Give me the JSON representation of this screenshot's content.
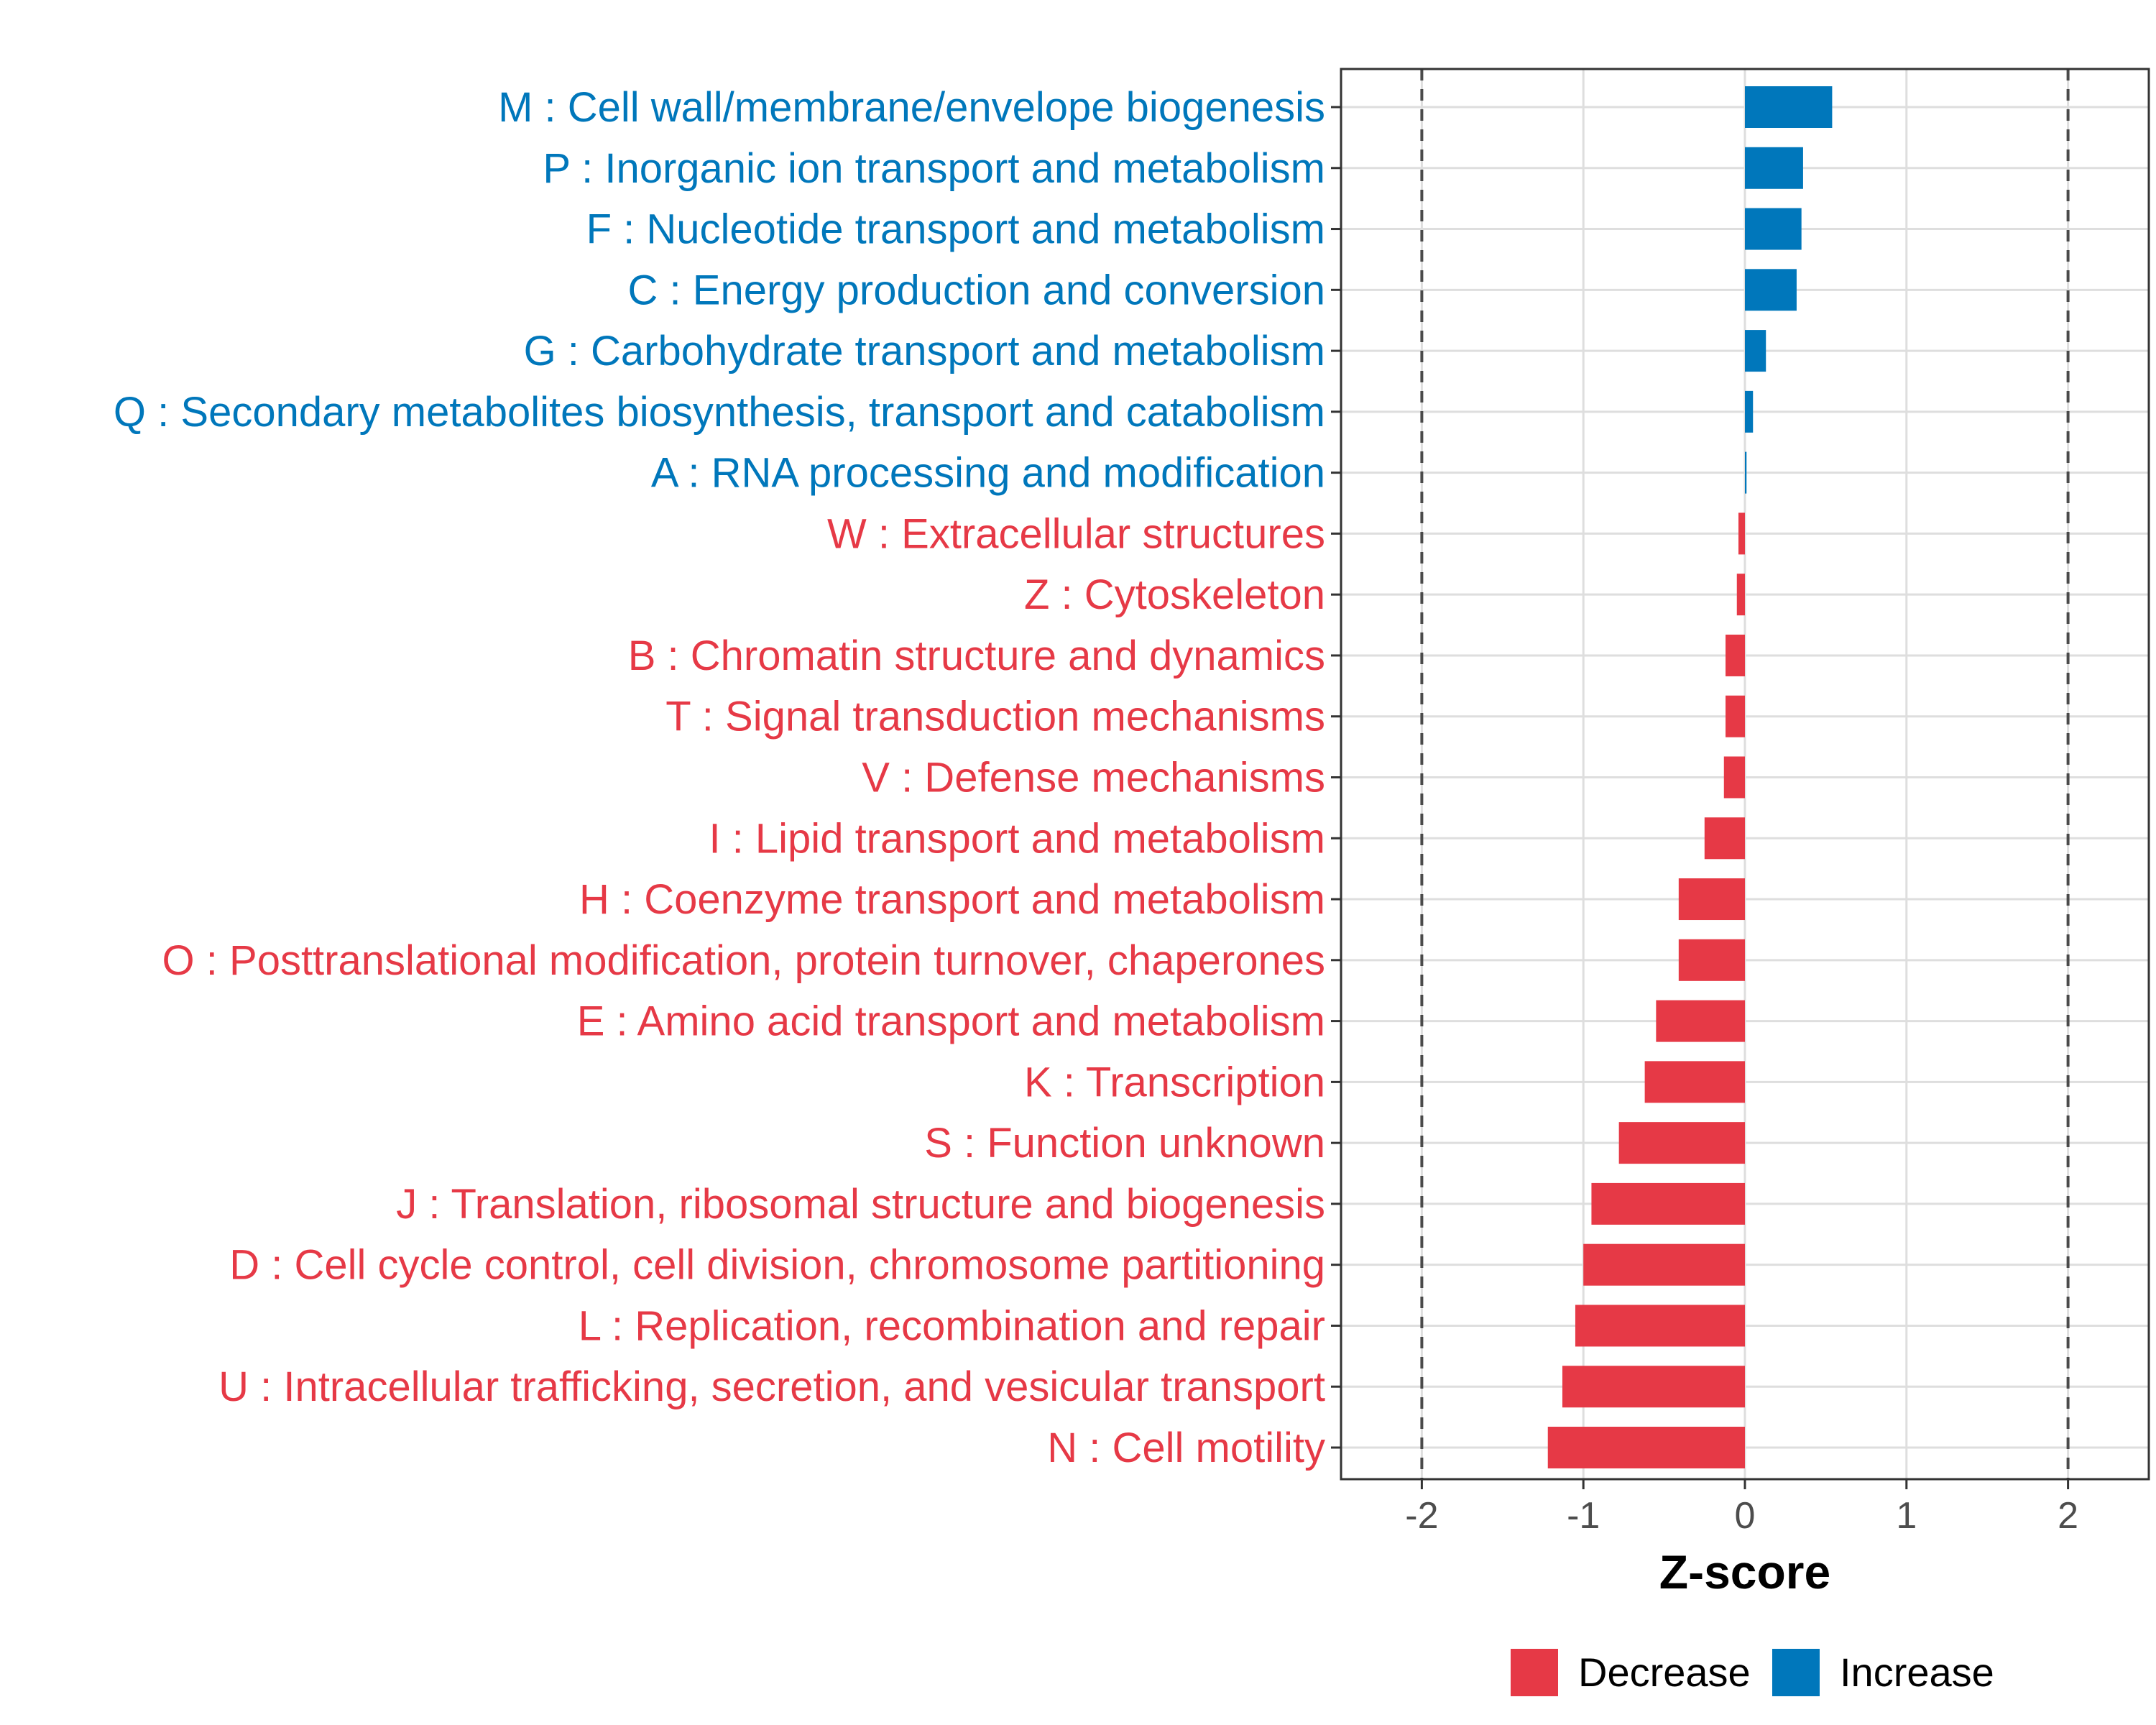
{
  "chart_data": {
    "type": "bar",
    "orientation": "horizontal",
    "title": "",
    "xlabel": "Z-score",
    "ylabel": "",
    "xlim": [
      -2.5,
      2.5
    ],
    "x_ticks": [
      -2,
      -1,
      0,
      1,
      2
    ],
    "x_tick_labels": [
      "-2",
      "-1",
      "0",
      "1",
      "2"
    ],
    "reference_lines": [
      -2,
      2
    ],
    "grid": true,
    "legend_position": "bottom",
    "colors": {
      "Decrease": "#e63946",
      "Increase": "#0077bb"
    },
    "legend": [
      {
        "label": "Decrease",
        "color": "#e63946"
      },
      {
        "label": "Increase",
        "color": "#0077bb"
      }
    ],
    "categories": [
      "M : Cell wall/membrane/envelope biogenesis",
      "P : Inorganic ion transport and metabolism",
      "F : Nucleotide transport and metabolism",
      "C : Energy production and conversion",
      "G : Carbohydrate transport and metabolism",
      "Q : Secondary metabolites biosynthesis, transport and catabolism",
      "A : RNA processing and modification",
      "W : Extracellular structures",
      "Z : Cytoskeleton",
      "B : Chromatin structure and dynamics",
      "T : Signal transduction mechanisms",
      "V : Defense mechanisms",
      "I : Lipid transport and metabolism",
      "H : Coenzyme transport and metabolism",
      "O : Posttranslational modification, protein turnover, chaperones",
      "E : Amino acid transport and metabolism",
      "K : Transcription",
      "S : Function unknown",
      "J : Translation, ribosomal structure and biogenesis",
      "D : Cell cycle control, cell division, chromosome partitioning",
      "L : Replication, recombination and repair",
      "U : Intracellular trafficking, secretion, and vesicular transport",
      "N : Cell motility"
    ],
    "values": [
      0.54,
      0.36,
      0.35,
      0.32,
      0.13,
      0.05,
      0.01,
      -0.04,
      -0.05,
      -0.12,
      -0.12,
      -0.13,
      -0.25,
      -0.41,
      -0.41,
      -0.55,
      -0.62,
      -0.78,
      -0.95,
      -1.0,
      -1.05,
      -1.13,
      -1.22
    ],
    "groups": [
      "Increase",
      "Increase",
      "Increase",
      "Increase",
      "Increase",
      "Increase",
      "Increase",
      "Decrease",
      "Decrease",
      "Decrease",
      "Decrease",
      "Decrease",
      "Decrease",
      "Decrease",
      "Decrease",
      "Decrease",
      "Decrease",
      "Decrease",
      "Decrease",
      "Decrease",
      "Decrease",
      "Decrease",
      "Decrease"
    ]
  }
}
